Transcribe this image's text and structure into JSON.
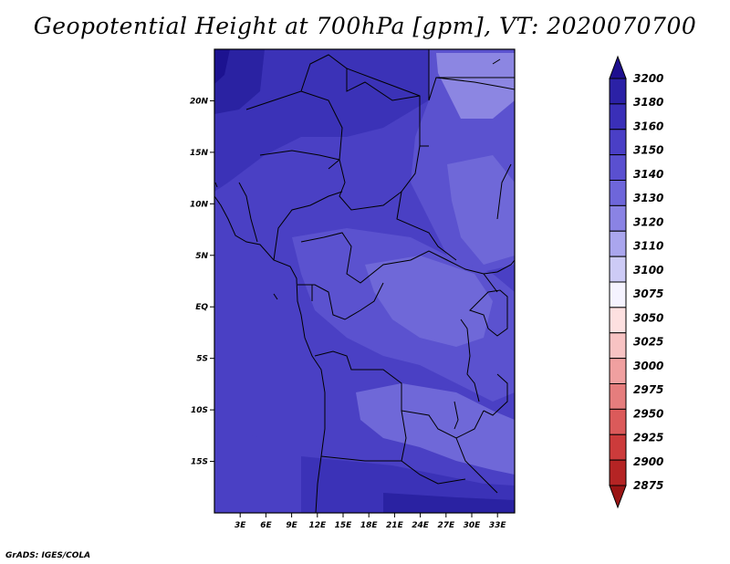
{
  "title": "Geopotential Height at 700hPa [gpm], VT: 2020070700",
  "credit": "GrADS: IGES/COLA",
  "map": {
    "lon_range": [
      0,
      35
    ],
    "lat_range": [
      -20,
      25
    ],
    "lat_ticks": [
      {
        "value": 20,
        "label": "20N"
      },
      {
        "value": 15,
        "label": "15N"
      },
      {
        "value": 10,
        "label": "10N"
      },
      {
        "value": 5,
        "label": "5N"
      },
      {
        "value": 0,
        "label": "EQ"
      },
      {
        "value": -5,
        "label": "5S"
      },
      {
        "value": -10,
        "label": "10S"
      },
      {
        "value": -15,
        "label": "15S"
      }
    ],
    "lon_ticks": [
      {
        "value": 3,
        "label": "3E"
      },
      {
        "value": 6,
        "label": "6E"
      },
      {
        "value": 9,
        "label": "9E"
      },
      {
        "value": 12,
        "label": "12E"
      },
      {
        "value": 15,
        "label": "15E"
      },
      {
        "value": 18,
        "label": "18E"
      },
      {
        "value": 21,
        "label": "21E"
      },
      {
        "value": 24,
        "label": "24E"
      },
      {
        "value": 27,
        "label": "27E"
      },
      {
        "value": 30,
        "label": "30E"
      },
      {
        "value": 33,
        "label": "33E"
      }
    ]
  },
  "colorbar": {
    "labels": [
      "3200",
      "3180",
      "3160",
      "3150",
      "3140",
      "3130",
      "3120",
      "3110",
      "3100",
      "3075",
      "3050",
      "3025",
      "3000",
      "2975",
      "2950",
      "2925",
      "2900",
      "2875"
    ],
    "colors": [
      "#1e0f8f",
      "#2b21a6",
      "#3a2fb8",
      "#4a3fc6",
      "#5a50d0",
      "#6e66da",
      "#8a83e4",
      "#aaa6ee",
      "#cdcbf6",
      "#f5f3ff",
      "#fde0e0",
      "#f8c3c3",
      "#f0a0a0",
      "#e57d7d",
      "#db5a5a",
      "#cc3b3b",
      "#b52424",
      "#9a1414"
    ]
  },
  "field_colors": {
    "h3140": "#5b52cf",
    "h3150": "#4a40c4",
    "h3160": "#3b32b7",
    "h3180": "#2a22a2",
    "h3200": "#1c1290",
    "h3130": "#6f68d8",
    "h3120": "#8c86e2"
  }
}
